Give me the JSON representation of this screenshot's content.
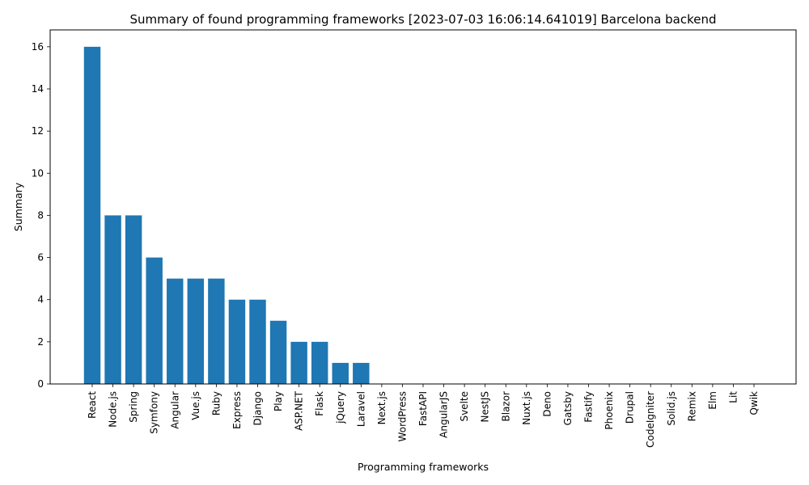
{
  "chart_data": {
    "type": "bar",
    "title": "Summary of found programming frameworks [2023-07-03 16:06:14.641019] Barcelona backend",
    "xlabel": "Programming frameworks",
    "ylabel": "Summary",
    "categories": [
      "React",
      "Node.js",
      "Spring",
      "Symfony",
      "Angular",
      "Vue.js",
      "Ruby",
      "Express",
      "Django",
      "Play",
      "ASP.NET",
      "Flask",
      "jQuery",
      "Laravel",
      "Next.js",
      "WordPress",
      "FastAPI",
      "AngularJS",
      "Svelte",
      "NestJS",
      "Blazor",
      "Nuxt.js",
      "Deno",
      "Gatsby",
      "Fastify",
      "Phoenix",
      "Drupal",
      "CodeIgniter",
      "Solid.js",
      "Remix",
      "Elm",
      "Lit",
      "Qwik"
    ],
    "values": [
      16,
      8,
      8,
      6,
      5,
      5,
      5,
      4,
      4,
      3,
      2,
      2,
      1,
      1,
      0,
      0,
      0,
      0,
      0,
      0,
      0,
      0,
      0,
      0,
      0,
      0,
      0,
      0,
      0,
      0,
      0,
      0,
      0
    ],
    "ylim": [
      0,
      16.8
    ],
    "yticks": [
      0,
      2,
      4,
      6,
      8,
      10,
      12,
      14,
      16
    ],
    "grid": false,
    "bar_color": "#1f77b4"
  }
}
